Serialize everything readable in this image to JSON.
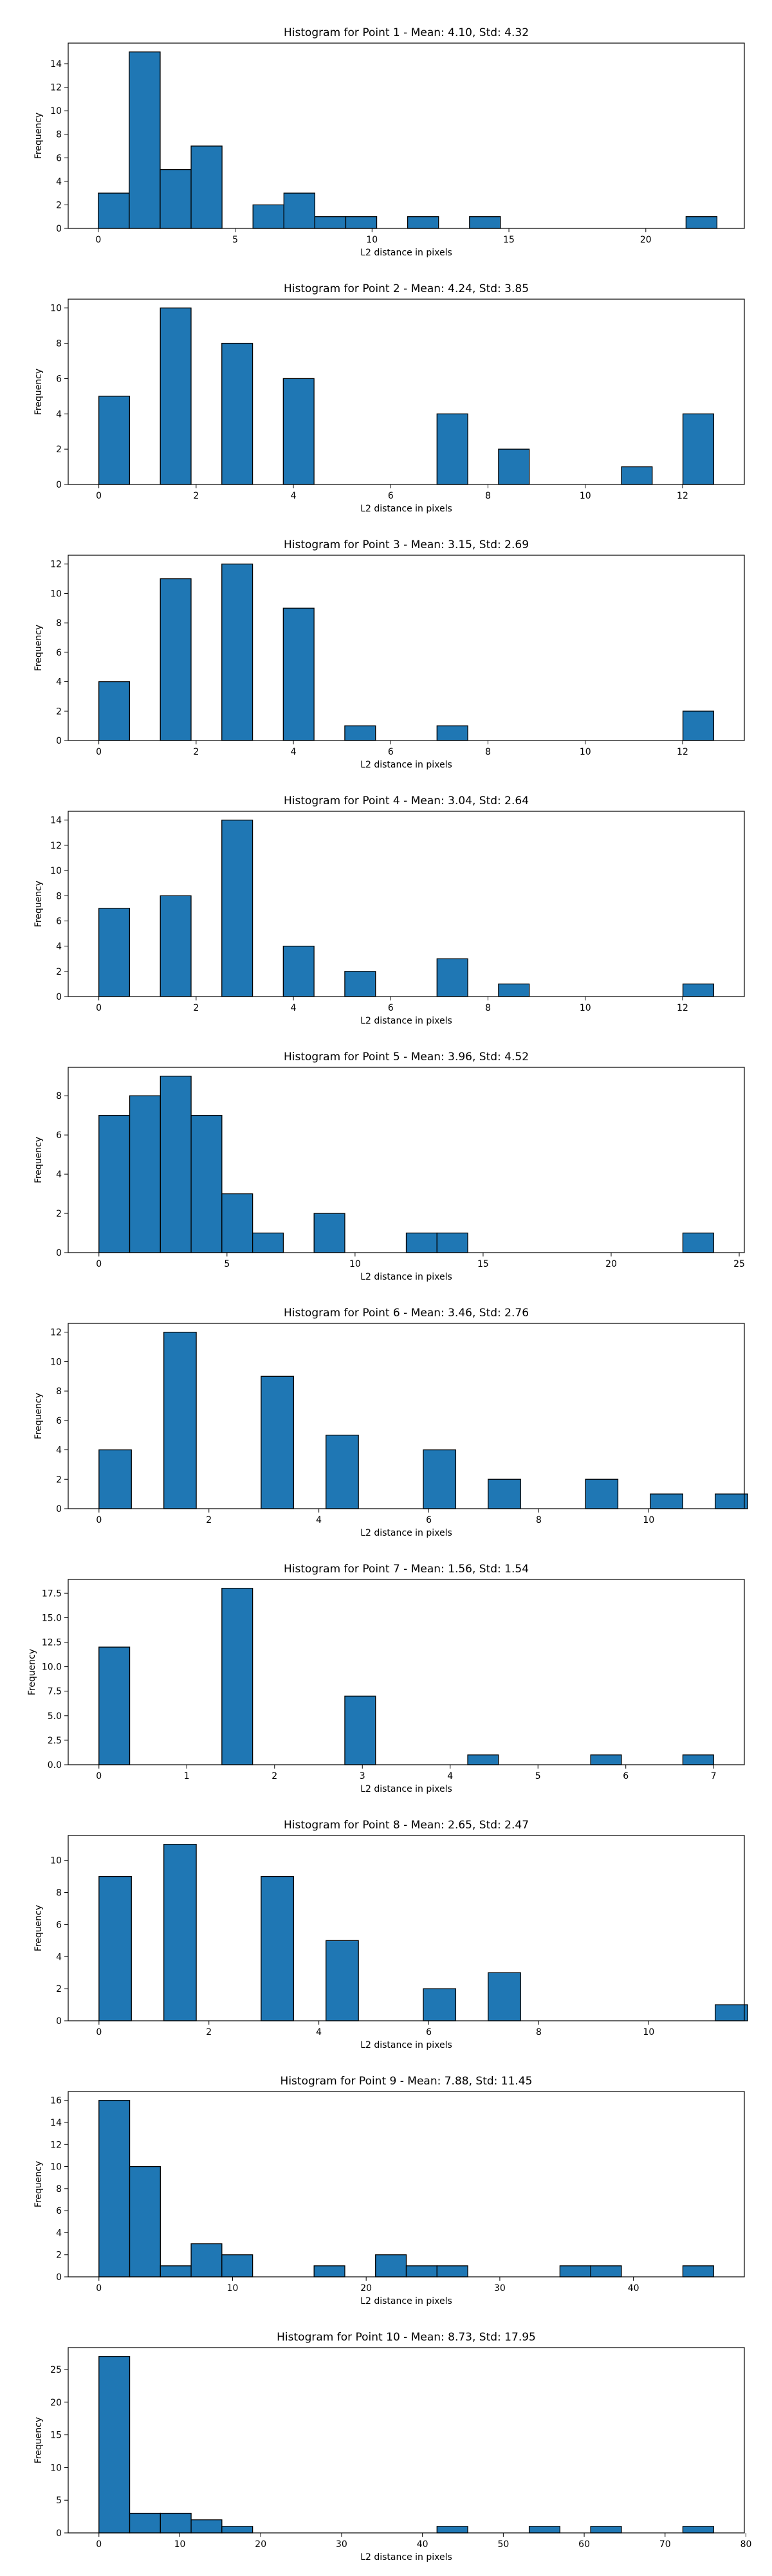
{
  "colors": {
    "bar_fill": "#1f77b4",
    "bar_edge": "#000000",
    "axis": "#000000"
  },
  "chart_data": [
    {
      "type": "bar",
      "title": "Histogram for Point 1 - Mean: 4.10, Std: 4.32",
      "xlabel": "L2 distance in pixels",
      "ylabel": "Frequency",
      "xlim": [
        -1.1,
        23.6
      ],
      "ylim": [
        0,
        15.75
      ],
      "xticks": [
        0,
        5,
        10,
        15,
        20
      ],
      "yticks": [
        0,
        2,
        4,
        6,
        8,
        10,
        12,
        14
      ],
      "bin_width": 1.13,
      "bins": [
        [
          0,
          3
        ],
        [
          1.13,
          15
        ],
        [
          2.26,
          5
        ],
        [
          3.39,
          7
        ],
        [
          5.65,
          2
        ],
        [
          6.78,
          3
        ],
        [
          7.91,
          1
        ],
        [
          9.04,
          1
        ],
        [
          11.3,
          1
        ],
        [
          13.56,
          1
        ],
        [
          21.47,
          1
        ]
      ]
    },
    {
      "type": "bar",
      "title": "Histogram for Point 2 - Mean: 4.24, Std: 3.85",
      "xlabel": "L2 distance in pixels",
      "ylabel": "Frequency",
      "xlim": [
        -0.63,
        13.27
      ],
      "ylim": [
        0,
        10.5
      ],
      "xticks": [
        0,
        2,
        4,
        6,
        8,
        10,
        12
      ],
      "yticks": [
        0,
        2,
        4,
        6,
        8,
        10
      ],
      "bin_width": 0.632,
      "bins": [
        [
          0,
          5
        ],
        [
          1.264,
          10
        ],
        [
          2.528,
          8
        ],
        [
          3.792,
          6
        ],
        [
          6.952,
          4
        ],
        [
          8.216,
          2
        ],
        [
          10.744,
          1
        ],
        [
          12.008,
          4
        ]
      ]
    },
    {
      "type": "bar",
      "title": "Histogram for Point 3 - Mean: 3.15, Std: 2.69",
      "xlabel": "L2 distance in pixels",
      "ylabel": "Frequency",
      "xlim": [
        -0.63,
        13.27
      ],
      "ylim": [
        0,
        12.6
      ],
      "xticks": [
        0,
        2,
        4,
        6,
        8,
        10,
        12
      ],
      "yticks": [
        0,
        2,
        4,
        6,
        8,
        10,
        12
      ],
      "bin_width": 0.632,
      "bins": [
        [
          0,
          4
        ],
        [
          1.264,
          11
        ],
        [
          2.528,
          12
        ],
        [
          3.792,
          9
        ],
        [
          5.056,
          1
        ],
        [
          6.952,
          1
        ],
        [
          12.008,
          2
        ]
      ]
    },
    {
      "type": "bar",
      "title": "Histogram for Point 4 - Mean: 3.04, Std: 2.64",
      "xlabel": "L2 distance in pixels",
      "ylabel": "Frequency",
      "xlim": [
        -0.63,
        13.27
      ],
      "ylim": [
        0,
        14.7
      ],
      "xticks": [
        0,
        2,
        4,
        6,
        8,
        10,
        12
      ],
      "yticks": [
        0,
        2,
        4,
        6,
        8,
        10,
        12,
        14
      ],
      "bin_width": 0.632,
      "bins": [
        [
          0,
          7
        ],
        [
          1.264,
          8
        ],
        [
          2.528,
          14
        ],
        [
          3.792,
          4
        ],
        [
          5.056,
          2
        ],
        [
          6.952,
          3
        ],
        [
          8.216,
          1
        ],
        [
          12.008,
          1
        ]
      ]
    },
    {
      "type": "bar",
      "title": "Histogram for Point 5 - Mean: 3.96, Std: 4.52",
      "xlabel": "L2 distance in pixels",
      "ylabel": "Frequency",
      "xlim": [
        -1.2,
        25.2
      ],
      "ylim": [
        0,
        9.45
      ],
      "xticks": [
        0,
        5,
        10,
        15,
        20,
        25
      ],
      "yticks": [
        0,
        2,
        4,
        6,
        8
      ],
      "bin_width": 1.2,
      "bins": [
        [
          0,
          7
        ],
        [
          1.2,
          8
        ],
        [
          2.4,
          9
        ],
        [
          3.6,
          7
        ],
        [
          4.8,
          3
        ],
        [
          6.0,
          1
        ],
        [
          8.4,
          2
        ],
        [
          12.0,
          1
        ],
        [
          13.2,
          1
        ],
        [
          22.8,
          1
        ]
      ]
    },
    {
      "type": "bar",
      "title": "Histogram for Point 6 - Mean: 3.46, Std: 2.76",
      "xlabel": "L2 distance in pixels",
      "ylabel": "Frequency",
      "xlim": [
        -0.56,
        11.74
      ],
      "ylim": [
        0,
        12.6
      ],
      "xticks": [
        0,
        2,
        4,
        6,
        8,
        10
      ],
      "yticks": [
        0,
        2,
        4,
        6,
        8,
        10,
        12
      ],
      "bin_width": 0.59,
      "bins": [
        [
          0,
          4
        ],
        [
          1.18,
          12
        ],
        [
          2.95,
          9
        ],
        [
          4.13,
          5
        ],
        [
          5.9,
          4
        ],
        [
          7.08,
          2
        ],
        [
          8.85,
          2
        ],
        [
          10.03,
          1
        ],
        [
          11.21,
          1
        ]
      ]
    },
    {
      "type": "bar",
      "title": "Histogram for Point 7 - Mean: 1.56, Std: 1.54",
      "xlabel": "L2 distance in pixels",
      "ylabel": "Frequency",
      "xlim": [
        -0.35,
        7.35
      ],
      "ylim": [
        0,
        18.9
      ],
      "xticks": [
        0,
        1,
        2,
        3,
        4,
        5,
        6,
        7
      ],
      "yticks": [
        0,
        2.5,
        5.0,
        7.5,
        10.0,
        12.5,
        15.0,
        17.5
      ],
      "ytick_labels": [
        "0.0",
        "2.5",
        "5.0",
        "7.5",
        "10.0",
        "12.5",
        "15.0",
        "17.5"
      ],
      "bin_width": 0.35,
      "bins": [
        [
          0,
          12
        ],
        [
          1.4,
          18
        ],
        [
          2.8,
          7
        ],
        [
          4.2,
          1
        ],
        [
          5.6,
          1
        ],
        [
          6.65,
          1
        ]
      ]
    },
    {
      "type": "bar",
      "title": "Histogram for Point 8 - Mean: 2.65, Std: 2.47",
      "xlabel": "L2 distance in pixels",
      "ylabel": "Frequency",
      "xlim": [
        -0.56,
        11.74
      ],
      "ylim": [
        0,
        11.55
      ],
      "xticks": [
        0,
        2,
        4,
        6,
        8,
        10
      ],
      "yticks": [
        0,
        2,
        4,
        6,
        8,
        10
      ],
      "bin_width": 0.59,
      "bins": [
        [
          0,
          9
        ],
        [
          1.18,
          11
        ],
        [
          2.95,
          9
        ],
        [
          4.13,
          5
        ],
        [
          5.9,
          2
        ],
        [
          7.08,
          3
        ],
        [
          11.21,
          1
        ]
      ]
    },
    {
      "type": "bar",
      "title": "Histogram for Point 9 - Mean: 7.88, Std: 11.45",
      "xlabel": "L2 distance in pixels",
      "ylabel": "Frequency",
      "xlim": [
        -2.3,
        48.3
      ],
      "ylim": [
        0,
        16.8
      ],
      "xticks": [
        0,
        10,
        20,
        30,
        40
      ],
      "yticks": [
        0,
        2,
        4,
        6,
        8,
        10,
        12,
        14,
        16
      ],
      "bin_width": 2.3,
      "bins": [
        [
          0,
          16
        ],
        [
          2.3,
          10
        ],
        [
          4.6,
          1
        ],
        [
          6.9,
          3
        ],
        [
          9.2,
          2
        ],
        [
          16.1,
          1
        ],
        [
          20.7,
          2
        ],
        [
          23.0,
          1
        ],
        [
          25.3,
          1
        ],
        [
          34.5,
          1
        ],
        [
          36.8,
          1
        ],
        [
          43.7,
          1
        ]
      ]
    },
    {
      "type": "bar",
      "title": "Histogram for Point 10 - Mean: 8.73, Std: 17.95",
      "xlabel": "L2 distance in pixels",
      "ylabel": "Frequency",
      "xlim": [
        -3.8,
        79.8
      ],
      "ylim": [
        0,
        28.35
      ],
      "xticks": [
        0,
        10,
        20,
        30,
        40,
        50,
        60,
        70,
        80
      ],
      "yticks": [
        0,
        5,
        10,
        15,
        20,
        25
      ],
      "bin_width": 3.8,
      "bins": [
        [
          0,
          27
        ],
        [
          3.8,
          3
        ],
        [
          7.6,
          3
        ],
        [
          11.4,
          2
        ],
        [
          15.2,
          1
        ],
        [
          41.8,
          1
        ],
        [
          53.2,
          1
        ],
        [
          60.8,
          1
        ],
        [
          72.2,
          1
        ]
      ]
    }
  ]
}
